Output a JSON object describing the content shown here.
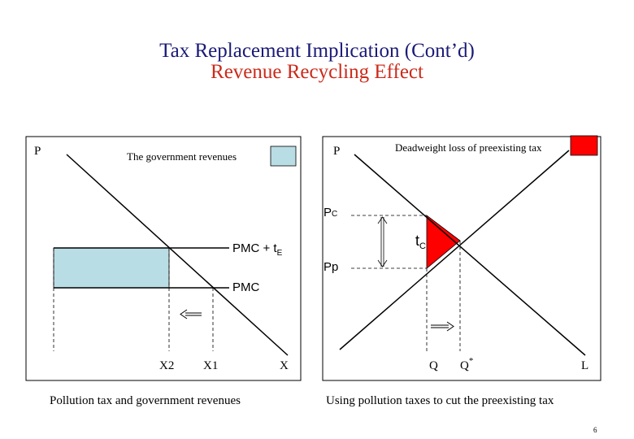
{
  "title": "Tax Replacement Implication (Cont’d)",
  "subtitle": "Revenue Recycling Effect",
  "colors": {
    "title": "#1a1a78",
    "subtitle": "#cc2a1a",
    "revenue_fill": "#b9dde4",
    "deadweight_fill": "#ff0000"
  },
  "left_panel": {
    "y_label": "P",
    "legend_label": "The government revenues",
    "curve_upper_label": "PMC + t",
    "curve_upper_sub": "E",
    "curve_lower_label": "PMC",
    "x_labels": [
      "X2",
      "X1",
      "X"
    ],
    "caption": "Pollution tax and government revenues"
  },
  "right_panel": {
    "y_label": "P",
    "legend_label": "Deadweight loss of preexisting tax",
    "price_consumer": "P",
    "price_consumer_sub": "C",
    "price_producer": "Pp",
    "tax_label": "t",
    "tax_sub": "C",
    "x_labels": [
      "Q",
      "Q",
      "L"
    ],
    "q_star_sup": "*",
    "caption": "Using pollution taxes to cut the preexisting  tax"
  },
  "page_number": "6"
}
